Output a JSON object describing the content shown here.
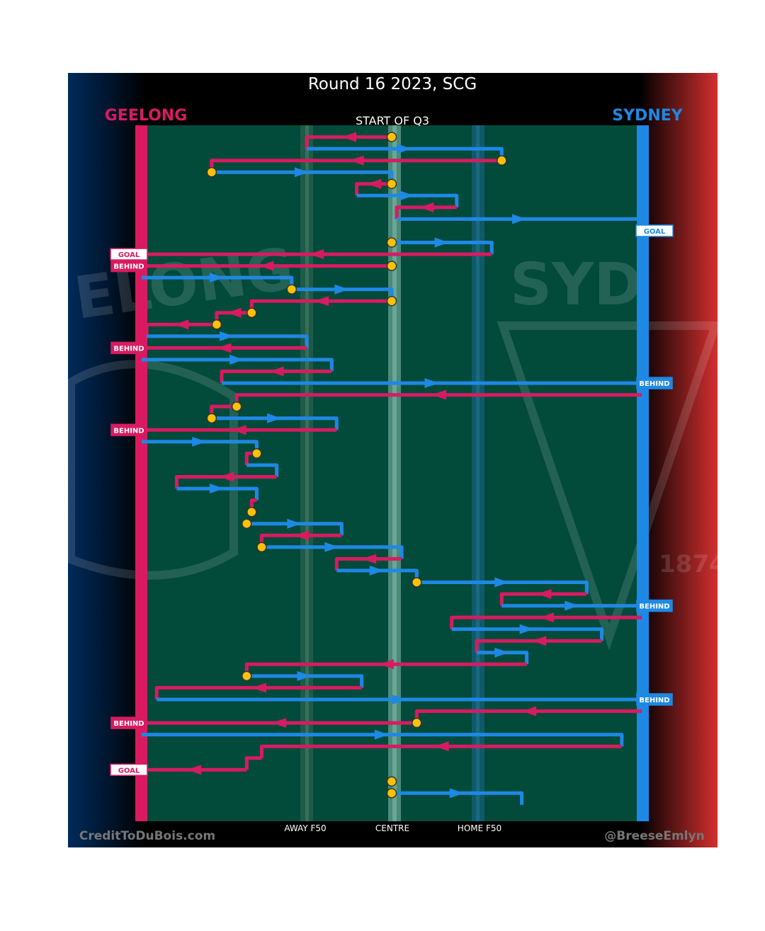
{
  "header": {
    "title": "Round 16 2023, SCG",
    "subtitle": "START OF Q3",
    "team_left": "GEELONG",
    "team_right": "SYDNEY",
    "credit_left": "CreditToDuBois.com",
    "credit_right": "@BreeseEmlyn"
  },
  "colors": {
    "geelong": "#d81b60",
    "sydney": "#1e88e5",
    "field": "#024a3a",
    "stoppage": "#ffc107",
    "left_gradient": "#002b5c",
    "right_gradient": "#d32f2f"
  },
  "axis_labels": [
    "AWAY F50",
    "CENTRE",
    "HOME F50"
  ],
  "chart_data": {
    "type": "line",
    "description_units": "x = field position, 0 = Geelong goal line, 100 = Sydney goal line; y = chain sequence order",
    "x_axis": {
      "ticks": [
        {
          "label": "AWAY F50",
          "x": 33
        },
        {
          "label": "CENTRE",
          "x": 50
        },
        {
          "label": "HOME F50",
          "x": 67
        }
      ],
      "range": [
        0,
        100
      ]
    },
    "segments": [
      {
        "team": "geelong",
        "points": [
          [
            50,
            1
          ],
          [
            33,
            1
          ],
          [
            33,
            2
          ]
        ]
      },
      {
        "team": "sydney",
        "points": [
          [
            33,
            2
          ],
          [
            72,
            2
          ],
          [
            72,
            3
          ]
        ]
      },
      {
        "team": "geelong",
        "points": [
          [
            72,
            3
          ],
          [
            14,
            3
          ],
          [
            14,
            4
          ]
        ]
      },
      {
        "team": "sydney",
        "points": [
          [
            14,
            4
          ],
          [
            50,
            4
          ],
          [
            50,
            5
          ]
        ]
      },
      {
        "team": "geelong",
        "points": [
          [
            50,
            5
          ],
          [
            43,
            5
          ],
          [
            43,
            6
          ]
        ]
      },
      {
        "team": "sydney",
        "points": [
          [
            43,
            6
          ],
          [
            63,
            6
          ],
          [
            63,
            7
          ]
        ]
      },
      {
        "team": "geelong",
        "points": [
          [
            63,
            7
          ],
          [
            51,
            7
          ],
          [
            51,
            8
          ]
        ]
      },
      {
        "team": "sydney",
        "points": [
          [
            51,
            8
          ],
          [
            100,
            8
          ]
        ]
      },
      {
        "team": "sydney",
        "points": [
          [
            50,
            10
          ],
          [
            70,
            10
          ],
          [
            70,
            11
          ]
        ]
      },
      {
        "team": "geelong",
        "points": [
          [
            70,
            11
          ],
          [
            0,
            11
          ]
        ]
      },
      {
        "team": "geelong",
        "points": [
          [
            50,
            12
          ],
          [
            0,
            12
          ]
        ]
      },
      {
        "team": "sydney",
        "points": [
          [
            0,
            13
          ],
          [
            30,
            13
          ],
          [
            30,
            14
          ]
        ]
      },
      {
        "team": "sydney",
        "points": [
          [
            30,
            14
          ],
          [
            50,
            14
          ],
          [
            50,
            15
          ]
        ]
      },
      {
        "team": "geelong",
        "points": [
          [
            50,
            15
          ],
          [
            22,
            15
          ],
          [
            22,
            16
          ]
        ]
      },
      {
        "team": "geelong",
        "points": [
          [
            22,
            16
          ],
          [
            15,
            16
          ],
          [
            15,
            17
          ]
        ]
      },
      {
        "team": "geelong",
        "points": [
          [
            15,
            17
          ],
          [
            1,
            17
          ],
          [
            1,
            18
          ]
        ]
      },
      {
        "team": "sydney",
        "points": [
          [
            1,
            18
          ],
          [
            33,
            18
          ],
          [
            33,
            19
          ]
        ]
      },
      {
        "team": "geelong",
        "points": [
          [
            33,
            19
          ],
          [
            0,
            19
          ]
        ]
      },
      {
        "team": "sydney",
        "points": [
          [
            0,
            20
          ],
          [
            38,
            20
          ],
          [
            38,
            21
          ]
        ]
      },
      {
        "team": "geelong",
        "points": [
          [
            38,
            21
          ],
          [
            16,
            21
          ],
          [
            16,
            22
          ]
        ]
      },
      {
        "team": "sydney",
        "points": [
          [
            16,
            22
          ],
          [
            100,
            22
          ]
        ]
      },
      {
        "team": "geelong",
        "points": [
          [
            100,
            23
          ],
          [
            19,
            23
          ],
          [
            19,
            24
          ]
        ]
      },
      {
        "team": "geelong",
        "points": [
          [
            19,
            24
          ],
          [
            14,
            24
          ],
          [
            14,
            25
          ]
        ]
      },
      {
        "team": "sydney",
        "points": [
          [
            14,
            25
          ],
          [
            39,
            25
          ],
          [
            39,
            26
          ]
        ]
      },
      {
        "team": "geelong",
        "points": [
          [
            39,
            26
          ],
          [
            0,
            26
          ]
        ]
      },
      {
        "team": "sydney",
        "points": [
          [
            0,
            27
          ],
          [
            23,
            27
          ],
          [
            23,
            28
          ]
        ]
      },
      {
        "team": "geelong",
        "points": [
          [
            23,
            28
          ],
          [
            21,
            28
          ],
          [
            21,
            29
          ]
        ]
      },
      {
        "team": "sydney",
        "points": [
          [
            21,
            29
          ],
          [
            27,
            29
          ],
          [
            27,
            30
          ]
        ]
      },
      {
        "team": "geelong",
        "points": [
          [
            27,
            30
          ],
          [
            7,
            30
          ],
          [
            7,
            31
          ]
        ]
      },
      {
        "team": "sydney",
        "points": [
          [
            7,
            31
          ],
          [
            23,
            31
          ],
          [
            23,
            32
          ]
        ]
      },
      {
        "team": "geelong",
        "points": [
          [
            23,
            32
          ],
          [
            22,
            32
          ],
          [
            22,
            33
          ]
        ]
      },
      {
        "team": "sydney",
        "points": [
          [
            21,
            34
          ],
          [
            40,
            34
          ],
          [
            40,
            35
          ]
        ]
      },
      {
        "team": "geelong",
        "points": [
          [
            40,
            35
          ],
          [
            24,
            35
          ],
          [
            24,
            36
          ]
        ]
      },
      {
        "team": "sydney",
        "points": [
          [
            24,
            36
          ],
          [
            52,
            36
          ],
          [
            52,
            37
          ]
        ]
      },
      {
        "team": "geelong",
        "points": [
          [
            52,
            37
          ],
          [
            39,
            37
          ],
          [
            39,
            38
          ]
        ]
      },
      {
        "team": "sydney",
        "points": [
          [
            39,
            38
          ],
          [
            55,
            38
          ],
          [
            55,
            39
          ]
        ]
      },
      {
        "team": "sydney",
        "points": [
          [
            55,
            39
          ],
          [
            89,
            39
          ],
          [
            89,
            40
          ]
        ]
      },
      {
        "team": "geelong",
        "points": [
          [
            89,
            40
          ],
          [
            72,
            40
          ],
          [
            72,
            41
          ]
        ]
      },
      {
        "team": "sydney",
        "points": [
          [
            72,
            41
          ],
          [
            100,
            41
          ]
        ]
      },
      {
        "team": "geelong",
        "points": [
          [
            100,
            42
          ],
          [
            62,
            42
          ],
          [
            62,
            43
          ]
        ]
      },
      {
        "team": "sydney",
        "points": [
          [
            62,
            43
          ],
          [
            92,
            43
          ],
          [
            92,
            44
          ]
        ]
      },
      {
        "team": "geelong",
        "points": [
          [
            92,
            44
          ],
          [
            67,
            44
          ],
          [
            67,
            45
          ]
        ]
      },
      {
        "team": "sydney",
        "points": [
          [
            67,
            45
          ],
          [
            77,
            45
          ],
          [
            77,
            46
          ]
        ]
      },
      {
        "team": "geelong",
        "points": [
          [
            77,
            46
          ],
          [
            21,
            46
          ],
          [
            21,
            47
          ]
        ]
      },
      {
        "team": "sydney",
        "points": [
          [
            21,
            47
          ],
          [
            44,
            47
          ],
          [
            44,
            48
          ]
        ]
      },
      {
        "team": "geelong",
        "points": [
          [
            44,
            48
          ],
          [
            3,
            48
          ],
          [
            3,
            49
          ]
        ]
      },
      {
        "team": "sydney",
        "points": [
          [
            3,
            49
          ],
          [
            100,
            49
          ]
        ]
      },
      {
        "team": "geelong",
        "points": [
          [
            100,
            50
          ],
          [
            55,
            50
          ],
          [
            55,
            51
          ]
        ]
      },
      {
        "team": "geelong",
        "points": [
          [
            55,
            51
          ],
          [
            0,
            51
          ]
        ]
      },
      {
        "team": "sydney",
        "points": [
          [
            0,
            52
          ],
          [
            96,
            52
          ],
          [
            96,
            53
          ]
        ]
      },
      {
        "team": "geelong",
        "points": [
          [
            96,
            53
          ],
          [
            24,
            53
          ],
          [
            24,
            54
          ]
        ]
      },
      {
        "team": "geelong",
        "points": [
          [
            24,
            54
          ],
          [
            21,
            54
          ],
          [
            21,
            55
          ]
        ]
      },
      {
        "team": "geelong",
        "points": [
          [
            21,
            55
          ],
          [
            0,
            55
          ]
        ]
      },
      {
        "team": "sydney",
        "points": [
          [
            50,
            57
          ],
          [
            76,
            57
          ],
          [
            76,
            58
          ]
        ]
      }
    ],
    "stoppages": [
      {
        "x": 50,
        "y": 1
      },
      {
        "x": 72,
        "y": 3
      },
      {
        "x": 14,
        "y": 4
      },
      {
        "x": 50,
        "y": 5
      },
      {
        "x": 100,
        "y": 9
      },
      {
        "x": 50,
        "y": 10
      },
      {
        "x": 50,
        "y": 12
      },
      {
        "x": 30,
        "y": 14
      },
      {
        "x": 50,
        "y": 15
      },
      {
        "x": 22,
        "y": 16
      },
      {
        "x": 15,
        "y": 17
      },
      {
        "x": 19,
        "y": 24
      },
      {
        "x": 14,
        "y": 25
      },
      {
        "x": 23,
        "y": 28
      },
      {
        "x": 22,
        "y": 33
      },
      {
        "x": 21,
        "y": 34
      },
      {
        "x": 24,
        "y": 36
      },
      {
        "x": 55,
        "y": 39
      },
      {
        "x": 21,
        "y": 47
      },
      {
        "x": 55,
        "y": 51
      },
      {
        "x": 50,
        "y": 56
      },
      {
        "x": 50,
        "y": 57
      }
    ],
    "scores": [
      {
        "team": "sydney",
        "side": "right",
        "label": "GOAL",
        "y": 9
      },
      {
        "team": "geelong",
        "side": "left",
        "label": "GOAL",
        "y": 11
      },
      {
        "team": "geelong",
        "side": "left",
        "label": "BEHIND",
        "y": 12
      },
      {
        "team": "geelong",
        "side": "left",
        "label": "BEHIND",
        "y": 19
      },
      {
        "team": "sydney",
        "side": "right",
        "label": "BEHIND",
        "y": 22
      },
      {
        "team": "geelong",
        "side": "left",
        "label": "BEHIND",
        "y": 26
      },
      {
        "team": "sydney",
        "side": "right",
        "label": "BEHIND",
        "y": 41
      },
      {
        "team": "sydney",
        "side": "right",
        "label": "BEHIND",
        "y": 49
      },
      {
        "team": "geelong",
        "side": "left",
        "label": "BEHIND",
        "y": 51
      },
      {
        "team": "geelong",
        "side": "left",
        "label": "GOAL",
        "y": 55
      }
    ]
  }
}
